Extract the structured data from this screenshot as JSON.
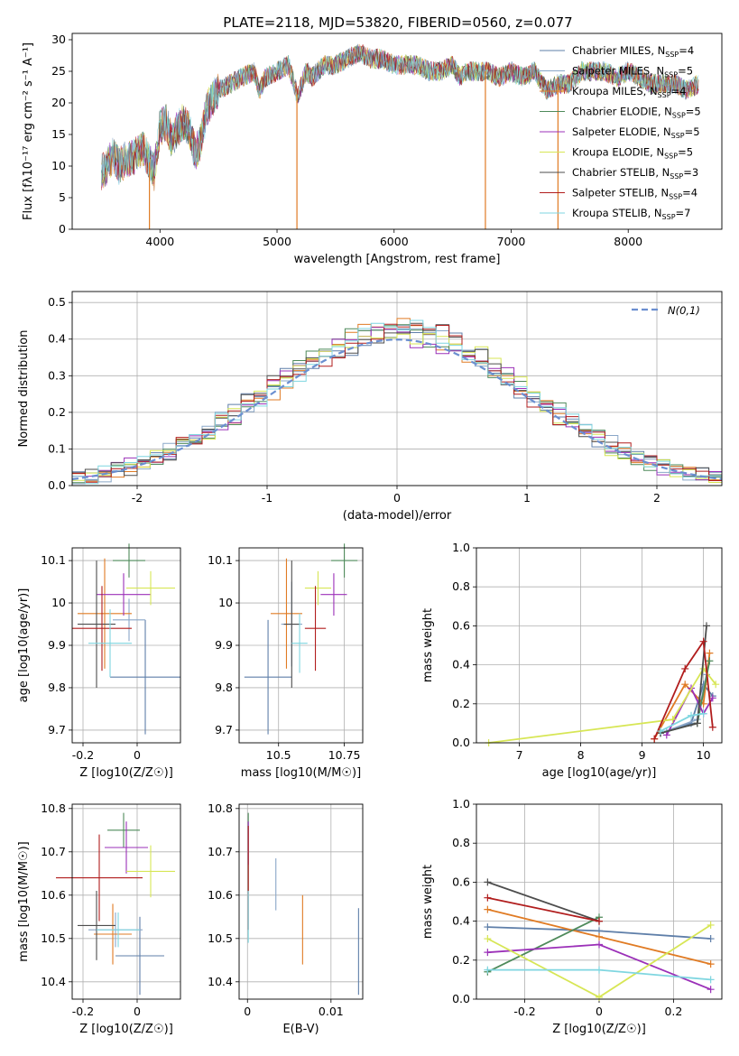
{
  "figure": {
    "title": "PLATE=2118, MJD=53820, FIBERID=0560, z=0.077"
  },
  "models": [
    {
      "name": "Chabrier MILES",
      "nssp": "4",
      "color": "#5f7fa9"
    },
    {
      "name": "Salpeter MILES",
      "nssp": "5",
      "color": "#8aa7c8"
    },
    {
      "name": "Kroupa MILES",
      "nssp": "4",
      "color": "#e07b24"
    },
    {
      "name": "Chabrier ELODIE",
      "nssp": "5",
      "color": "#4e8a5a"
    },
    {
      "name": "Salpeter ELODIE",
      "nssp": "5",
      "color": "#9b30b8"
    },
    {
      "name": "Kroupa ELODIE",
      "nssp": "5",
      "color": "#d7e655"
    },
    {
      "name": "Chabrier STELIB",
      "nssp": "3",
      "color": "#4d4d4d"
    },
    {
      "name": "Salpeter STELIB",
      "nssp": "4",
      "color": "#b11d1d"
    },
    {
      "name": "Kroupa STELIB",
      "nssp": "7",
      "color": "#7fd6e0"
    }
  ],
  "chart_data": [
    {
      "id": "spectrum",
      "type": "line",
      "xlabel": "wavelength [Angstrom, rest frame]",
      "ylabel": "Flux [fλ10⁻¹⁷ erg cm⁻² s⁻¹ A⁻¹]",
      "xlim": [
        3250,
        8800
      ],
      "ylim": [
        0,
        31
      ],
      "xticks": [
        4000,
        5000,
        6000,
        7000,
        8000
      ],
      "yticks": [
        0,
        5,
        10,
        15,
        20,
        25,
        30
      ],
      "spectrum_x": [
        3500,
        3550,
        3600,
        3650,
        3700,
        3750,
        3800,
        3850,
        3900,
        3950,
        4000,
        4050,
        4100,
        4150,
        4200,
        4250,
        4300,
        4350,
        4400,
        4450,
        4500,
        4600,
        4700,
        4800,
        4850,
        4900,
        5000,
        5100,
        5175,
        5250,
        5300,
        5400,
        5500,
        5600,
        5700,
        5800,
        5900,
        6000,
        6100,
        6200,
        6300,
        6400,
        6500,
        6563,
        6600,
        6700,
        6800,
        6900,
        7000,
        7100,
        7200,
        7300,
        7400,
        7500,
        7600,
        7700,
        7800,
        7900,
        8000,
        8100,
        8200,
        8300,
        8400,
        8500,
        8600
      ],
      "spectrum_y": [
        9,
        10,
        12,
        10,
        11,
        11,
        12,
        13,
        11,
        9,
        16,
        17,
        14,
        16,
        17,
        16,
        12,
        14,
        19,
        21,
        22,
        23,
        24,
        25,
        22,
        24,
        25,
        26,
        21,
        25,
        24,
        26,
        26,
        27,
        28,
        27,
        27,
        26,
        26,
        26,
        25,
        25,
        26,
        24,
        25,
        25,
        25,
        24,
        25,
        24,
        25,
        22,
        23,
        23,
        25,
        25,
        25,
        24,
        25,
        24,
        23,
        23,
        23,
        22,
        23
      ],
      "spike_x": [
        3910,
        5170,
        6780,
        7400
      ],
      "legend_position": "upper right",
      "grid": false
    },
    {
      "id": "residuals",
      "type": "line",
      "xlabel": "(data-model)/error",
      "ylabel": "Normed distribution",
      "xlim": [
        -2.5,
        2.5
      ],
      "ylim": [
        0,
        0.53
      ],
      "xticks": [
        -2,
        -1,
        0,
        1,
        2
      ],
      "yticks": [
        0.0,
        0.1,
        0.2,
        0.3,
        0.4,
        0.5
      ],
      "reference_curve": {
        "label": "N(0,1)",
        "color": "#6b8fd0"
      },
      "legend_position": "upper right",
      "grid": true
    },
    {
      "id": "age-vs-z",
      "type": "scatter",
      "xlabel": "Z [log10(Z/Z☉)]",
      "ylabel": "age  [log10(age/yr)]",
      "xlim": [
        -0.24,
        0.16
      ],
      "ylim": [
        9.67,
        10.13
      ],
      "xticks": [
        -0.2,
        0.0
      ],
      "yticks": [
        9.7,
        9.8,
        9.9,
        10.0,
        10.1
      ],
      "points": [
        {
          "model": "Chabrier MILES",
          "x": 0.03,
          "y": 9.825,
          "xerr": 0.13,
          "yerr": 0.135
        },
        {
          "model": "Salpeter MILES",
          "x": -0.03,
          "y": 9.96,
          "xerr": 0.06,
          "yerr": 0.05
        },
        {
          "model": "Kroupa MILES",
          "x": -0.12,
          "y": 9.975,
          "xerr": 0.1,
          "yerr": 0.13
        },
        {
          "model": "Chabrier ELODIE",
          "x": -0.03,
          "y": 10.1,
          "xerr": 0.06,
          "yerr": 0.04
        },
        {
          "model": "Salpeter ELODIE",
          "x": -0.05,
          "y": 10.02,
          "xerr": 0.1,
          "yerr": 0.05
        },
        {
          "model": "Kroupa ELODIE",
          "x": 0.05,
          "y": 10.035,
          "xerr": 0.09,
          "yerr": 0.04
        },
        {
          "model": "Chabrier STELIB",
          "x": -0.15,
          "y": 9.95,
          "xerr": 0.07,
          "yerr": 0.15
        },
        {
          "model": "Salpeter STELIB",
          "x": -0.13,
          "y": 9.94,
          "xerr": 0.11,
          "yerr": 0.1
        },
        {
          "model": "Kroupa STELIB",
          "x": -0.1,
          "y": 9.905,
          "xerr": 0.08,
          "yerr": 0.08
        }
      ],
      "grid": true
    },
    {
      "id": "age-vs-mass",
      "type": "scatter",
      "xlabel": "mass [log10(M/M☉)]",
      "ylabel": "",
      "xlim": [
        10.35,
        10.82
      ],
      "ylim": [
        9.67,
        10.13
      ],
      "xticks": [
        10.5,
        10.75
      ],
      "yticks": [
        9.7,
        9.8,
        9.9,
        10.0,
        10.1
      ],
      "points": [
        {
          "model": "Chabrier MILES",
          "x": 10.46,
          "y": 9.825,
          "xerr": 0.09,
          "yerr": 0.135
        },
        {
          "model": "Salpeter MILES",
          "x": 10.55,
          "y": 9.95,
          "xerr": 0.04,
          "yerr": 0.1
        },
        {
          "model": "Kroupa MILES",
          "x": 10.53,
          "y": 9.975,
          "xerr": 0.06,
          "yerr": 0.13
        },
        {
          "model": "Chabrier ELODIE",
          "x": 10.75,
          "y": 10.1,
          "xerr": 0.05,
          "yerr": 0.04
        },
        {
          "model": "Salpeter ELODIE",
          "x": 10.71,
          "y": 10.02,
          "xerr": 0.05,
          "yerr": 0.05
        },
        {
          "model": "Kroupa ELODIE",
          "x": 10.65,
          "y": 10.035,
          "xerr": 0.05,
          "yerr": 0.04
        },
        {
          "model": "Chabrier STELIB",
          "x": 10.55,
          "y": 9.95,
          "xerr": 0.03,
          "yerr": 0.15
        },
        {
          "model": "Salpeter STELIB",
          "x": 10.64,
          "y": 9.94,
          "xerr": 0.04,
          "yerr": 0.1
        },
        {
          "model": "Kroupa STELIB",
          "x": 10.58,
          "y": 9.905,
          "xerr": 0.03,
          "yerr": 0.07
        }
      ],
      "grid": true
    },
    {
      "id": "weight-vs-age",
      "type": "line",
      "xlabel": "age  [log10(age/yr)]",
      "ylabel": "mass weight",
      "xlim": [
        6.3,
        10.3
      ],
      "ylim": [
        0,
        1
      ],
      "xticks": [
        7,
        8,
        9,
        10
      ],
      "yticks": [
        0.0,
        0.2,
        0.4,
        0.6,
        0.8,
        1.0
      ],
      "series": [
        {
          "model": "Chabrier MILES",
          "x": [
            9.3,
            9.8,
            10.0,
            10.15
          ],
          "y": [
            0.05,
            0.1,
            0.3,
            0.24
          ]
        },
        {
          "model": "Salpeter MILES",
          "x": [
            9.4,
            9.9,
            10.05
          ],
          "y": [
            0.06,
            0.12,
            0.35
          ]
        },
        {
          "model": "Kroupa MILES",
          "x": [
            9.2,
            9.7,
            10.0,
            10.1
          ],
          "y": [
            0.02,
            0.3,
            0.2,
            0.46
          ]
        },
        {
          "model": "Chabrier ELODIE",
          "x": [
            9.3,
            9.9,
            10.1
          ],
          "y": [
            0.05,
            0.1,
            0.42
          ]
        },
        {
          "model": "Salpeter ELODIE",
          "x": [
            9.4,
            9.8,
            10.0,
            10.15
          ],
          "y": [
            0.04,
            0.28,
            0.15,
            0.23
          ]
        },
        {
          "model": "Kroupa ELODIE",
          "x": [
            6.5,
            9.5,
            10.0,
            10.2
          ],
          "y": [
            0.0,
            0.12,
            0.38,
            0.3
          ]
        },
        {
          "model": "Chabrier STELIB",
          "x": [
            9.3,
            9.9,
            10.05
          ],
          "y": [
            0.05,
            0.1,
            0.6
          ]
        },
        {
          "model": "Salpeter STELIB",
          "x": [
            9.2,
            9.7,
            10.0,
            10.15
          ],
          "y": [
            0.02,
            0.38,
            0.52,
            0.08
          ]
        },
        {
          "model": "Kroupa STELIB",
          "x": [
            9.3,
            9.8,
            10.0
          ],
          "y": [
            0.06,
            0.14,
            0.15
          ]
        }
      ],
      "grid": true
    },
    {
      "id": "mass-vs-z",
      "type": "scatter",
      "xlabel": "Z [log10(Z/Z☉)]",
      "ylabel": "mass [log10(M/M☉)]",
      "xlim": [
        -0.24,
        0.16
      ],
      "ylim": [
        10.36,
        10.81
      ],
      "xticks": [
        -0.2,
        0.0
      ],
      "yticks": [
        10.4,
        10.5,
        10.6,
        10.7,
        10.8
      ],
      "points": [
        {
          "model": "Chabrier MILES",
          "x": 0.01,
          "y": 10.46,
          "xerr": 0.09,
          "yerr": 0.09
        },
        {
          "model": "Salpeter MILES",
          "x": -0.08,
          "y": 10.52,
          "xerr": 0.1,
          "yerr": 0.04
        },
        {
          "model": "Kroupa MILES",
          "x": -0.09,
          "y": 10.51,
          "xerr": 0.07,
          "yerr": 0.07
        },
        {
          "model": "Chabrier ELODIE",
          "x": -0.05,
          "y": 10.75,
          "xerr": 0.06,
          "yerr": 0.04
        },
        {
          "model": "Salpeter ELODIE",
          "x": -0.04,
          "y": 10.71,
          "xerr": 0.08,
          "yerr": 0.06
        },
        {
          "model": "Kroupa ELODIE",
          "x": 0.05,
          "y": 10.655,
          "xerr": 0.09,
          "yerr": 0.06
        },
        {
          "model": "Chabrier STELIB",
          "x": -0.15,
          "y": 10.53,
          "xerr": 0.07,
          "yerr": 0.08
        },
        {
          "model": "Salpeter STELIB",
          "x": -0.14,
          "y": 10.64,
          "xerr": 0.16,
          "yerr": 0.1
        },
        {
          "model": "Kroupa STELIB",
          "x": -0.07,
          "y": 10.52,
          "xerr": 0.08,
          "yerr": 0.04
        }
      ],
      "grid": true
    },
    {
      "id": "mass-vs-ebv",
      "type": "scatter",
      "xlabel": "E(B-V)",
      "ylabel": "",
      "xlim": [
        -0.001,
        0.0138
      ],
      "ylim": [
        10.36,
        10.81
      ],
      "xticks": [
        0.0,
        0.01
      ],
      "yticks": [
        10.4,
        10.5,
        10.6,
        10.7,
        10.8
      ],
      "points": [
        {
          "model": "Chabrier MILES",
          "x": 0.0133,
          "y": 10.47,
          "xerr": 0,
          "yerr": 0.1
        },
        {
          "model": "Kroupa MILES",
          "x": 0.0066,
          "y": 10.52,
          "xerr": 0,
          "yerr": 0.08
        },
        {
          "model": "Salpeter MILES",
          "x": 0.0034,
          "y": 10.625,
          "xerr": 0,
          "yerr": 0.06
        },
        {
          "model": "Chabrier ELODIE",
          "x": 0.0001,
          "y": 10.7,
          "xerr": 0,
          "yerr": 0.09
        },
        {
          "model": "Salpeter ELODIE",
          "x": 0.0001,
          "y": 10.72,
          "xerr": 0,
          "yerr": 0.05
        },
        {
          "model": "Salpeter STELIB",
          "x": 0.0001,
          "y": 10.64,
          "xerr": 0,
          "yerr": 0.12
        },
        {
          "model": "Kroupa STELIB",
          "x": 0.0001,
          "y": 10.55,
          "xerr": 0,
          "yerr": 0.06
        }
      ],
      "grid": true
    },
    {
      "id": "weight-vs-z",
      "type": "line",
      "xlabel": "Z [log10(Z/Z☉)]",
      "ylabel": "mass weight",
      "xlim": [
        -0.33,
        0.33
      ],
      "ylim": [
        0,
        1
      ],
      "xticks": [
        -0.2,
        0.0,
        0.2
      ],
      "yticks": [
        0.0,
        0.2,
        0.4,
        0.6,
        0.8,
        1.0
      ],
      "series": [
        {
          "model": "Chabrier MILES",
          "x": [
            -0.3,
            0.0,
            0.3
          ],
          "y": [
            0.37,
            0.35,
            0.31
          ]
        },
        {
          "model": "Kroupa MILES",
          "x": [
            -0.3,
            0.0,
            0.3
          ],
          "y": [
            0.46,
            0.32,
            0.18
          ]
        },
        {
          "model": "Chabrier ELODIE",
          "x": [
            -0.3,
            0.0
          ],
          "y": [
            0.14,
            0.42
          ]
        },
        {
          "model": "Salpeter ELODIE",
          "x": [
            -0.3,
            0.0,
            0.3
          ],
          "y": [
            0.24,
            0.28,
            0.05
          ]
        },
        {
          "model": "Kroupa ELODIE",
          "x": [
            -0.3,
            0.0,
            0.3
          ],
          "y": [
            0.31,
            0.01,
            0.38
          ]
        },
        {
          "model": "Chabrier STELIB",
          "x": [
            -0.3,
            0.0
          ],
          "y": [
            0.6,
            0.4
          ]
        },
        {
          "model": "Salpeter STELIB",
          "x": [
            -0.3,
            0.0
          ],
          "y": [
            0.52,
            0.4
          ]
        },
        {
          "model": "Kroupa STELIB",
          "x": [
            -0.3,
            0.0,
            0.3
          ],
          "y": [
            0.15,
            0.15,
            0.1
          ]
        }
      ],
      "grid": true
    }
  ]
}
